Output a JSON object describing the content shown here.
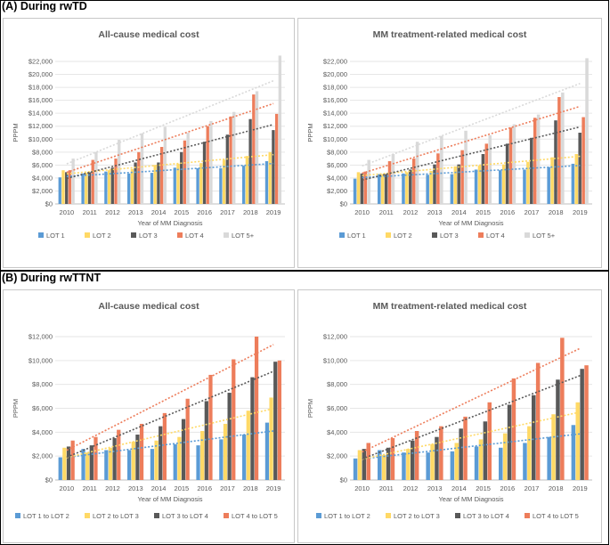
{
  "sections": [
    {
      "label": "(A) During rwTD"
    },
    {
      "label": "(B) During rwTTNT"
    }
  ],
  "series_colors": [
    "#5b9bd5",
    "#ffd966",
    "#595959",
    "#ed7d5b",
    "#d9d9d9"
  ],
  "trend_colors": [
    "#5b9bd5",
    "#ffd966",
    "#595959",
    "#ed7d5b",
    "#d9d9d9"
  ],
  "chart_data": [
    {
      "type": "bar",
      "title": "All-cause medical cost",
      "xlabel": "Year of MM Diagnosis",
      "ylabel": "PPPM",
      "ylim": [
        0,
        22000
      ],
      "ytick_step": 2000,
      "yticks": [
        "$0",
        "$2,000",
        "$4,000",
        "$6,000",
        "$8,000",
        "$10,000",
        "$12,000",
        "$14,000",
        "$16,000",
        "$18,000",
        "$20,000",
        "$22,000"
      ],
      "categories": [
        "2010",
        "2011",
        "2012",
        "2013",
        "2014",
        "2015",
        "2016",
        "2017",
        "2018",
        "2019"
      ],
      "trendlines": true,
      "series": [
        {
          "name": "LOT 1",
          "values": [
            4100,
            4700,
            5000,
            4700,
            4800,
            5600,
            5500,
            5500,
            5900,
            6600
          ]
        },
        {
          "name": "LOT 2",
          "values": [
            5200,
            4800,
            5200,
            5400,
            6000,
            6200,
            6300,
            6800,
            7400,
            8000
          ]
        },
        {
          "name": "LOT 3",
          "values": [
            4900,
            4900,
            5600,
            6400,
            6400,
            8000,
            9600,
            10700,
            13100,
            11400
          ]
        },
        {
          "name": "LOT 4",
          "values": [
            5200,
            6800,
            7000,
            8000,
            8800,
            9800,
            12000,
            13500,
            16900,
            13900
          ]
        },
        {
          "name": "LOT 5+",
          "values": [
            7000,
            8000,
            9900,
            10900,
            11900,
            11000,
            12800,
            14200,
            17400,
            22900
          ]
        }
      ]
    },
    {
      "type": "bar",
      "title": "MM treatment-related medical cost",
      "xlabel": "Year of MM Diagnosis",
      "ylabel": "PPPM",
      "ylim": [
        0,
        22000
      ],
      "ytick_step": 2000,
      "yticks": [
        "$0",
        "$2,000",
        "$4,000",
        "$6,000",
        "$8,000",
        "$10,000",
        "$12,000",
        "$14,000",
        "$16,000",
        "$18,000",
        "$20,000",
        "$22,000"
      ],
      "categories": [
        "2010",
        "2011",
        "2012",
        "2013",
        "2014",
        "2015",
        "2016",
        "2017",
        "2018",
        "2019"
      ],
      "trendlines": true,
      "series": [
        {
          "name": "LOT 1",
          "values": [
            3900,
            4600,
            4700,
            4500,
            4600,
            5300,
            5200,
            5300,
            5700,
            6200
          ]
        },
        {
          "name": "LOT 2",
          "values": [
            4900,
            4600,
            4900,
            5100,
            5800,
            5900,
            6100,
            6500,
            7200,
            7700
          ]
        },
        {
          "name": "LOT 3",
          "values": [
            4700,
            4600,
            5300,
            6100,
            6100,
            7700,
            9300,
            10200,
            12900,
            11000
          ]
        },
        {
          "name": "LOT 4",
          "values": [
            5000,
            6600,
            7000,
            7800,
            8300,
            9300,
            11800,
            13300,
            16500,
            13400
          ]
        },
        {
          "name": "LOT 5+",
          "values": [
            6800,
            7700,
            9600,
            10500,
            11300,
            10600,
            12300,
            13800,
            17200,
            22500
          ]
        }
      ]
    },
    {
      "type": "bar",
      "title": "All-cause medical cost",
      "xlabel": "Year of MM Diagnosis",
      "ylabel": "PPPM",
      "ylim": [
        0,
        12000
      ],
      "ytick_step": 2000,
      "yticks": [
        "$0",
        "$2,000",
        "$4,000",
        "$6,000",
        "$8,000",
        "$10,000",
        "$12,000"
      ],
      "categories": [
        "2010",
        "2011",
        "2012",
        "2013",
        "2014",
        "2015",
        "2016",
        "2017",
        "2018",
        "2019"
      ],
      "trendlines": true,
      "series": [
        {
          "name": "LOT 1 to LOT 2",
          "values": [
            1900,
            2600,
            2500,
            2500,
            2600,
            3000,
            2900,
            3400,
            3800,
            4800
          ]
        },
        {
          "name": "LOT 2 to LOT 3",
          "values": [
            2700,
            2300,
            2700,
            3200,
            3300,
            3600,
            4100,
            4700,
            5800,
            6900
          ]
        },
        {
          "name": "LOT 3 to LOT 4",
          "values": [
            2800,
            2900,
            3500,
            3800,
            4500,
            5100,
            6600,
            7300,
            8600,
            9900
          ]
        },
        {
          "name": "LOT 4 to LOT 5",
          "values": [
            3300,
            3600,
            4200,
            4700,
            5600,
            6800,
            8800,
            10100,
            12000,
            10000
          ]
        }
      ]
    },
    {
      "type": "bar",
      "title": "MM treatment-related medical cost",
      "xlabel": "Year of MM Diagnosis",
      "ylabel": "PPPM",
      "ylim": [
        0,
        12000
      ],
      "ytick_step": 2000,
      "yticks": [
        "$0",
        "$2,000",
        "$4,000",
        "$6,000",
        "$8,000",
        "$10,000",
        "$12,000"
      ],
      "categories": [
        "2010",
        "2011",
        "2012",
        "2013",
        "2014",
        "2015",
        "2016",
        "2017",
        "2018",
        "2019"
      ],
      "trendlines": true,
      "series": [
        {
          "name": "LOT 1 to LOT 2",
          "values": [
            1800,
            2500,
            2300,
            2300,
            2400,
            2800,
            2700,
            3100,
            3600,
            4600
          ]
        },
        {
          "name": "LOT 2 to LOT 3",
          "values": [
            2500,
            2100,
            2600,
            3000,
            3100,
            3400,
            3900,
            4500,
            5500,
            6500
          ]
        },
        {
          "name": "LOT 3 to LOT 4",
          "values": [
            2600,
            2700,
            3300,
            3600,
            4300,
            4900,
            6300,
            7100,
            8400,
            9300
          ]
        },
        {
          "name": "LOT 4 to LOT 5",
          "values": [
            3100,
            3500,
            4100,
            4500,
            5300,
            6500,
            8500,
            9800,
            11900,
            9600
          ]
        }
      ]
    }
  ]
}
